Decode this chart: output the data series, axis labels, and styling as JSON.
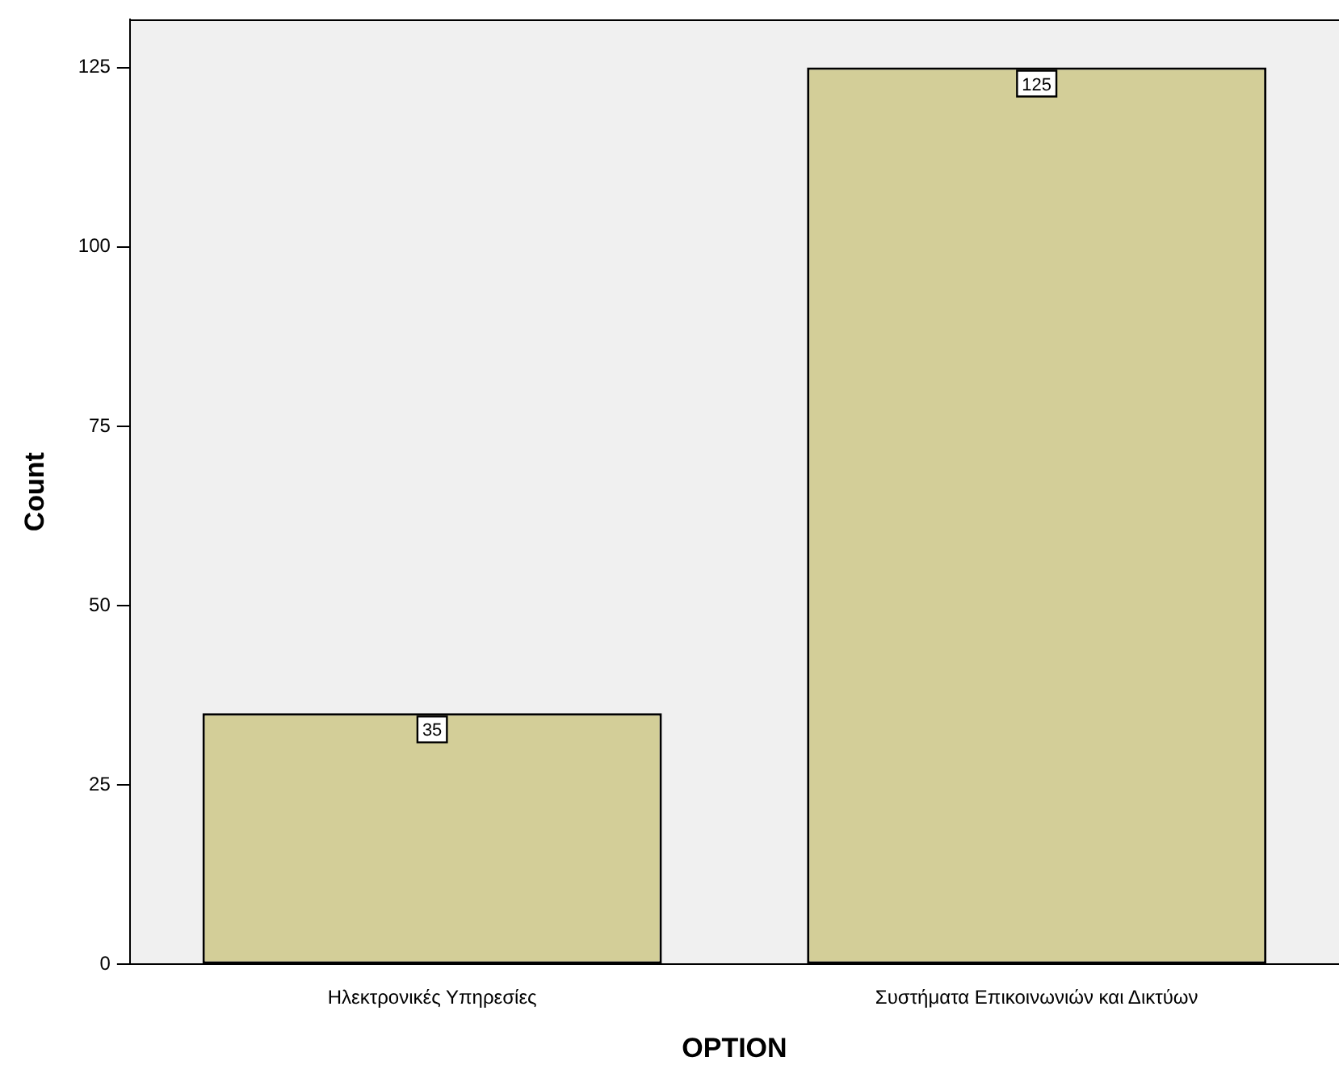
{
  "chart_data": {
    "type": "bar",
    "xlabel": "OPTION",
    "ylabel": "Count",
    "categories": [
      "Ηλεκτρονικές Υπηρεσίες",
      "Συστήματα Επικοινωνιών και Δικτύων"
    ],
    "values": [
      35,
      125
    ],
    "color": "#d3ce98",
    "ylim": [
      0,
      131.7
    ],
    "yticks": [
      0,
      25,
      50,
      75,
      100,
      125
    ],
    "grid": false,
    "data_labels": true,
    "legend": false
  }
}
